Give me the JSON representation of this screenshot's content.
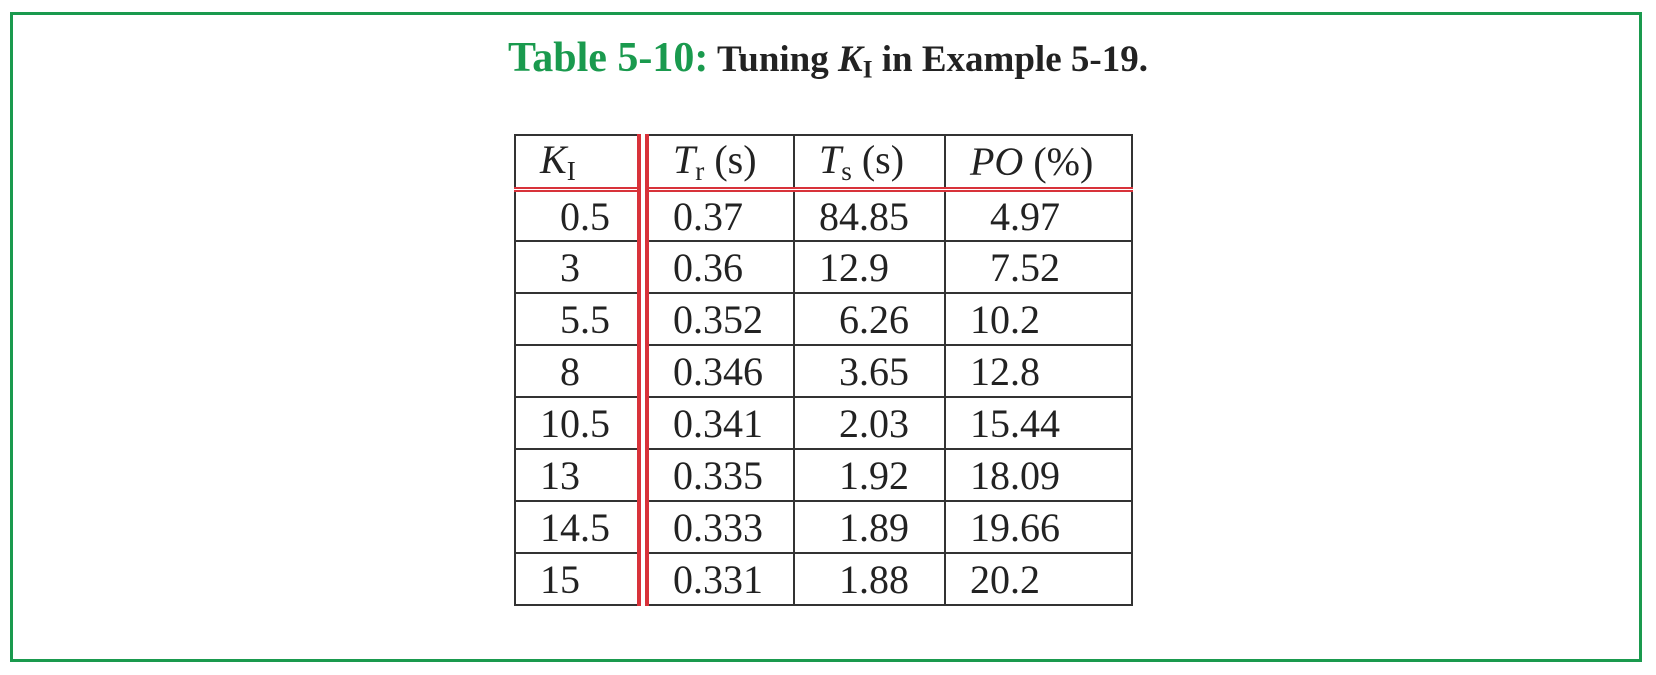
{
  "caption": {
    "label": "Table 5-10:",
    "text_before": "Tuning",
    "symbol": "K",
    "subscript": "I",
    "text_after": "in Example 5-19."
  },
  "table": {
    "headers": [
      {
        "symbol": "K",
        "subscript": "I"
      },
      {
        "symbol": "T",
        "subscript": "r",
        "unit": "(s)"
      },
      {
        "symbol": "T",
        "subscript": "s",
        "unit": "(s)"
      },
      {
        "symbol": "PO",
        "unit": "(%)"
      }
    ],
    "rows": [
      [
        0.5,
        0.37,
        84.85,
        4.97
      ],
      [
        3,
        0.36,
        12.9,
        7.52
      ],
      [
        5.5,
        0.352,
        6.26,
        10.2
      ],
      [
        8,
        0.346,
        3.65,
        12.8
      ],
      [
        10.5,
        0.341,
        2.03,
        15.44
      ],
      [
        13,
        0.335,
        1.92,
        18.09
      ],
      [
        14.5,
        0.333,
        1.89,
        19.66
      ],
      [
        15,
        0.331,
        1.88,
        20.2
      ]
    ]
  }
}
